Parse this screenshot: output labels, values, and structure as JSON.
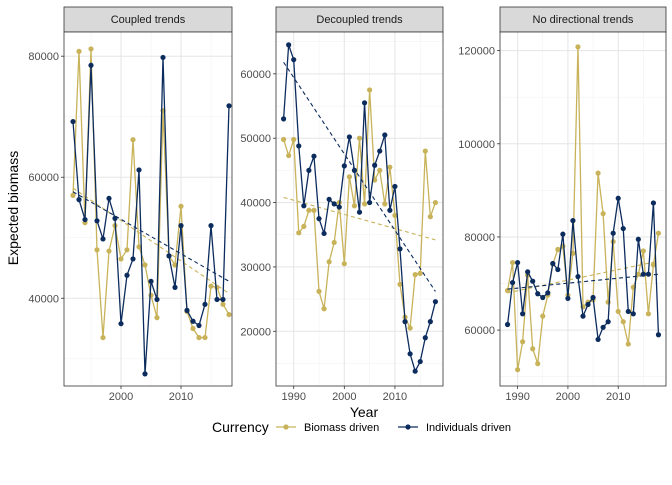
{
  "colors": {
    "biomass": "#C8B35A",
    "individuals": "#0C2C5E",
    "strip_bg": "#D9D9D9",
    "grid_major": "#E5E5E5",
    "grid_minor": "#F2F2F2",
    "panel_border": "#333333"
  },
  "chart_data": {
    "type": "line",
    "ylabel": "Expected biomass",
    "xlabel": "Year",
    "legend": {
      "title": "Currency",
      "position": "bottom",
      "entries": [
        "Biomass driven",
        "Individuals driven"
      ]
    },
    "grid": true,
    "panels": [
      {
        "title": "Coupled trends",
        "xlim": [
          1990.5,
          2018.5
        ],
        "ylim": [
          25500,
          84000
        ],
        "xticks": [
          2000,
          2010
        ],
        "yticks": [
          40000,
          60000,
          80000
        ],
        "ytick_labels": [
          "40000",
          "60000",
          "80000"
        ],
        "years": [
          1992,
          1993,
          1994,
          1995,
          1996,
          1997,
          1998,
          1999,
          2000,
          2001,
          2002,
          2003,
          2004,
          2005,
          2006,
          2007,
          2008,
          2009,
          2010,
          2011,
          2012,
          2013,
          2014,
          2015,
          2016,
          2017,
          2018
        ],
        "series": [
          {
            "name": "Biomass driven",
            "values": [
              57000,
              80800,
              52500,
              81200,
              48000,
              33500,
              47800,
              52000,
              46500,
              48000,
              66200,
              48500,
              45500,
              40500,
              36800,
              71000,
              47000,
              45500,
              55200,
              37800,
              35000,
              33500,
              33500,
              42000,
              41800,
              39000,
              37300
            ],
            "trend": [
              58200,
              40800
            ]
          },
          {
            "name": "Individuals driven",
            "values": [
              69200,
              56300,
              53000,
              78500,
              52800,
              49800,
              56500,
              53200,
              35800,
              43800,
              46500,
              61200,
              27500,
              42800,
              39800,
              79800,
              47000,
              41800,
              52000,
              38000,
              36200,
              35500,
              39000,
              52000,
              39800,
              39800,
              71800
            ],
            "trend": [
              57600,
              42800
            ]
          }
        ]
      },
      {
        "title": "Decoupled trends",
        "xlim": [
          1986.5,
          2019.5
        ],
        "ylim": [
          11500,
          66500
        ],
        "xticks": [
          1990,
          2000,
          2010
        ],
        "yticks": [
          20000,
          30000,
          40000,
          50000,
          60000
        ],
        "ytick_labels": [
          "20000",
          "30000",
          "40000",
          "50000",
          "60000"
        ],
        "years": [
          1988,
          1989,
          1990,
          1991,
          1992,
          1993,
          1994,
          1995,
          1996,
          1997,
          1998,
          1999,
          2000,
          2001,
          2002,
          2003,
          2004,
          2005,
          2006,
          2007,
          2008,
          2009,
          2010,
          2011,
          2012,
          2013,
          2014,
          2015,
          2016,
          2017,
          2018
        ],
        "series": [
          {
            "name": "Biomass driven",
            "values": [
              49800,
              47300,
              49800,
              35300,
              36300,
              38800,
              38800,
              26200,
              23500,
              30800,
              33800,
              40000,
              30500,
              44000,
              39500,
              50000,
              39800,
              57500,
              43500,
              45000,
              39800,
              45500,
              38000,
              27300,
              22200,
              20500,
              28800,
              29000,
              48000,
              37800,
              40000
            ],
            "trend": [
              40800,
              34200
            ]
          },
          {
            "name": "Individuals driven",
            "values": [
              53000,
              64500,
              62200,
              48800,
              39500,
              45000,
              47200,
              37500,
              35200,
              40500,
              39800,
              39300,
              45700,
              50200,
              45000,
              38500,
              55500,
              40000,
              45800,
              48000,
              50500,
              38800,
              42500,
              32800,
              21500,
              16500,
              13800,
              15300,
              19000,
              21500,
              24600
            ],
            "trend": [
              61800,
              26200
            ]
          }
        ]
      },
      {
        "title": "No directional trends",
        "xlim": [
          1986.5,
          2019.5
        ],
        "ylim": [
          48000,
          124000
        ],
        "xticks": [
          1990,
          2000,
          2010
        ],
        "yticks": [
          60000,
          80000,
          100000,
          120000
        ],
        "ytick_labels": [
          "60000",
          "80000",
          "100000",
          "120000"
        ],
        "years": [
          1988,
          1989,
          1990,
          1991,
          1992,
          1993,
          1994,
          1995,
          1996,
          1997,
          1998,
          1999,
          2000,
          2001,
          2002,
          2003,
          2004,
          2005,
          2006,
          2007,
          2008,
          2009,
          2010,
          2011,
          2012,
          2013,
          2014,
          2015,
          2016,
          2017,
          2018
        ],
        "series": [
          {
            "name": "Biomass driven",
            "values": [
              68500,
              74500,
              51500,
              57500,
              71800,
              56000,
              52800,
              63000,
              67500,
              74200,
              77300,
              78000,
              67500,
              76500,
              120800,
              65000,
              66000,
              66500,
              93700,
              85000,
              66000,
              79000,
              64000,
              61800,
              57000,
              69200,
              72000,
              77000,
              63500,
              74000,
              80800
            ],
            "trend": [
              68000,
              74800
            ]
          },
          {
            "name": "Individuals driven",
            "values": [
              61200,
              70200,
              74500,
              63500,
              72500,
              70500,
              67800,
              67000,
              68000,
              74300,
              73000,
              80600,
              66800,
              83500,
              71500,
              63000,
              65500,
              67000,
              58000,
              60600,
              61800,
              80800,
              88300,
              81800,
              64000,
              63500,
              79500,
              72000,
              72000,
              87300,
              59000
            ],
            "trend": [
              68800,
              72000
            ]
          }
        ]
      }
    ]
  }
}
